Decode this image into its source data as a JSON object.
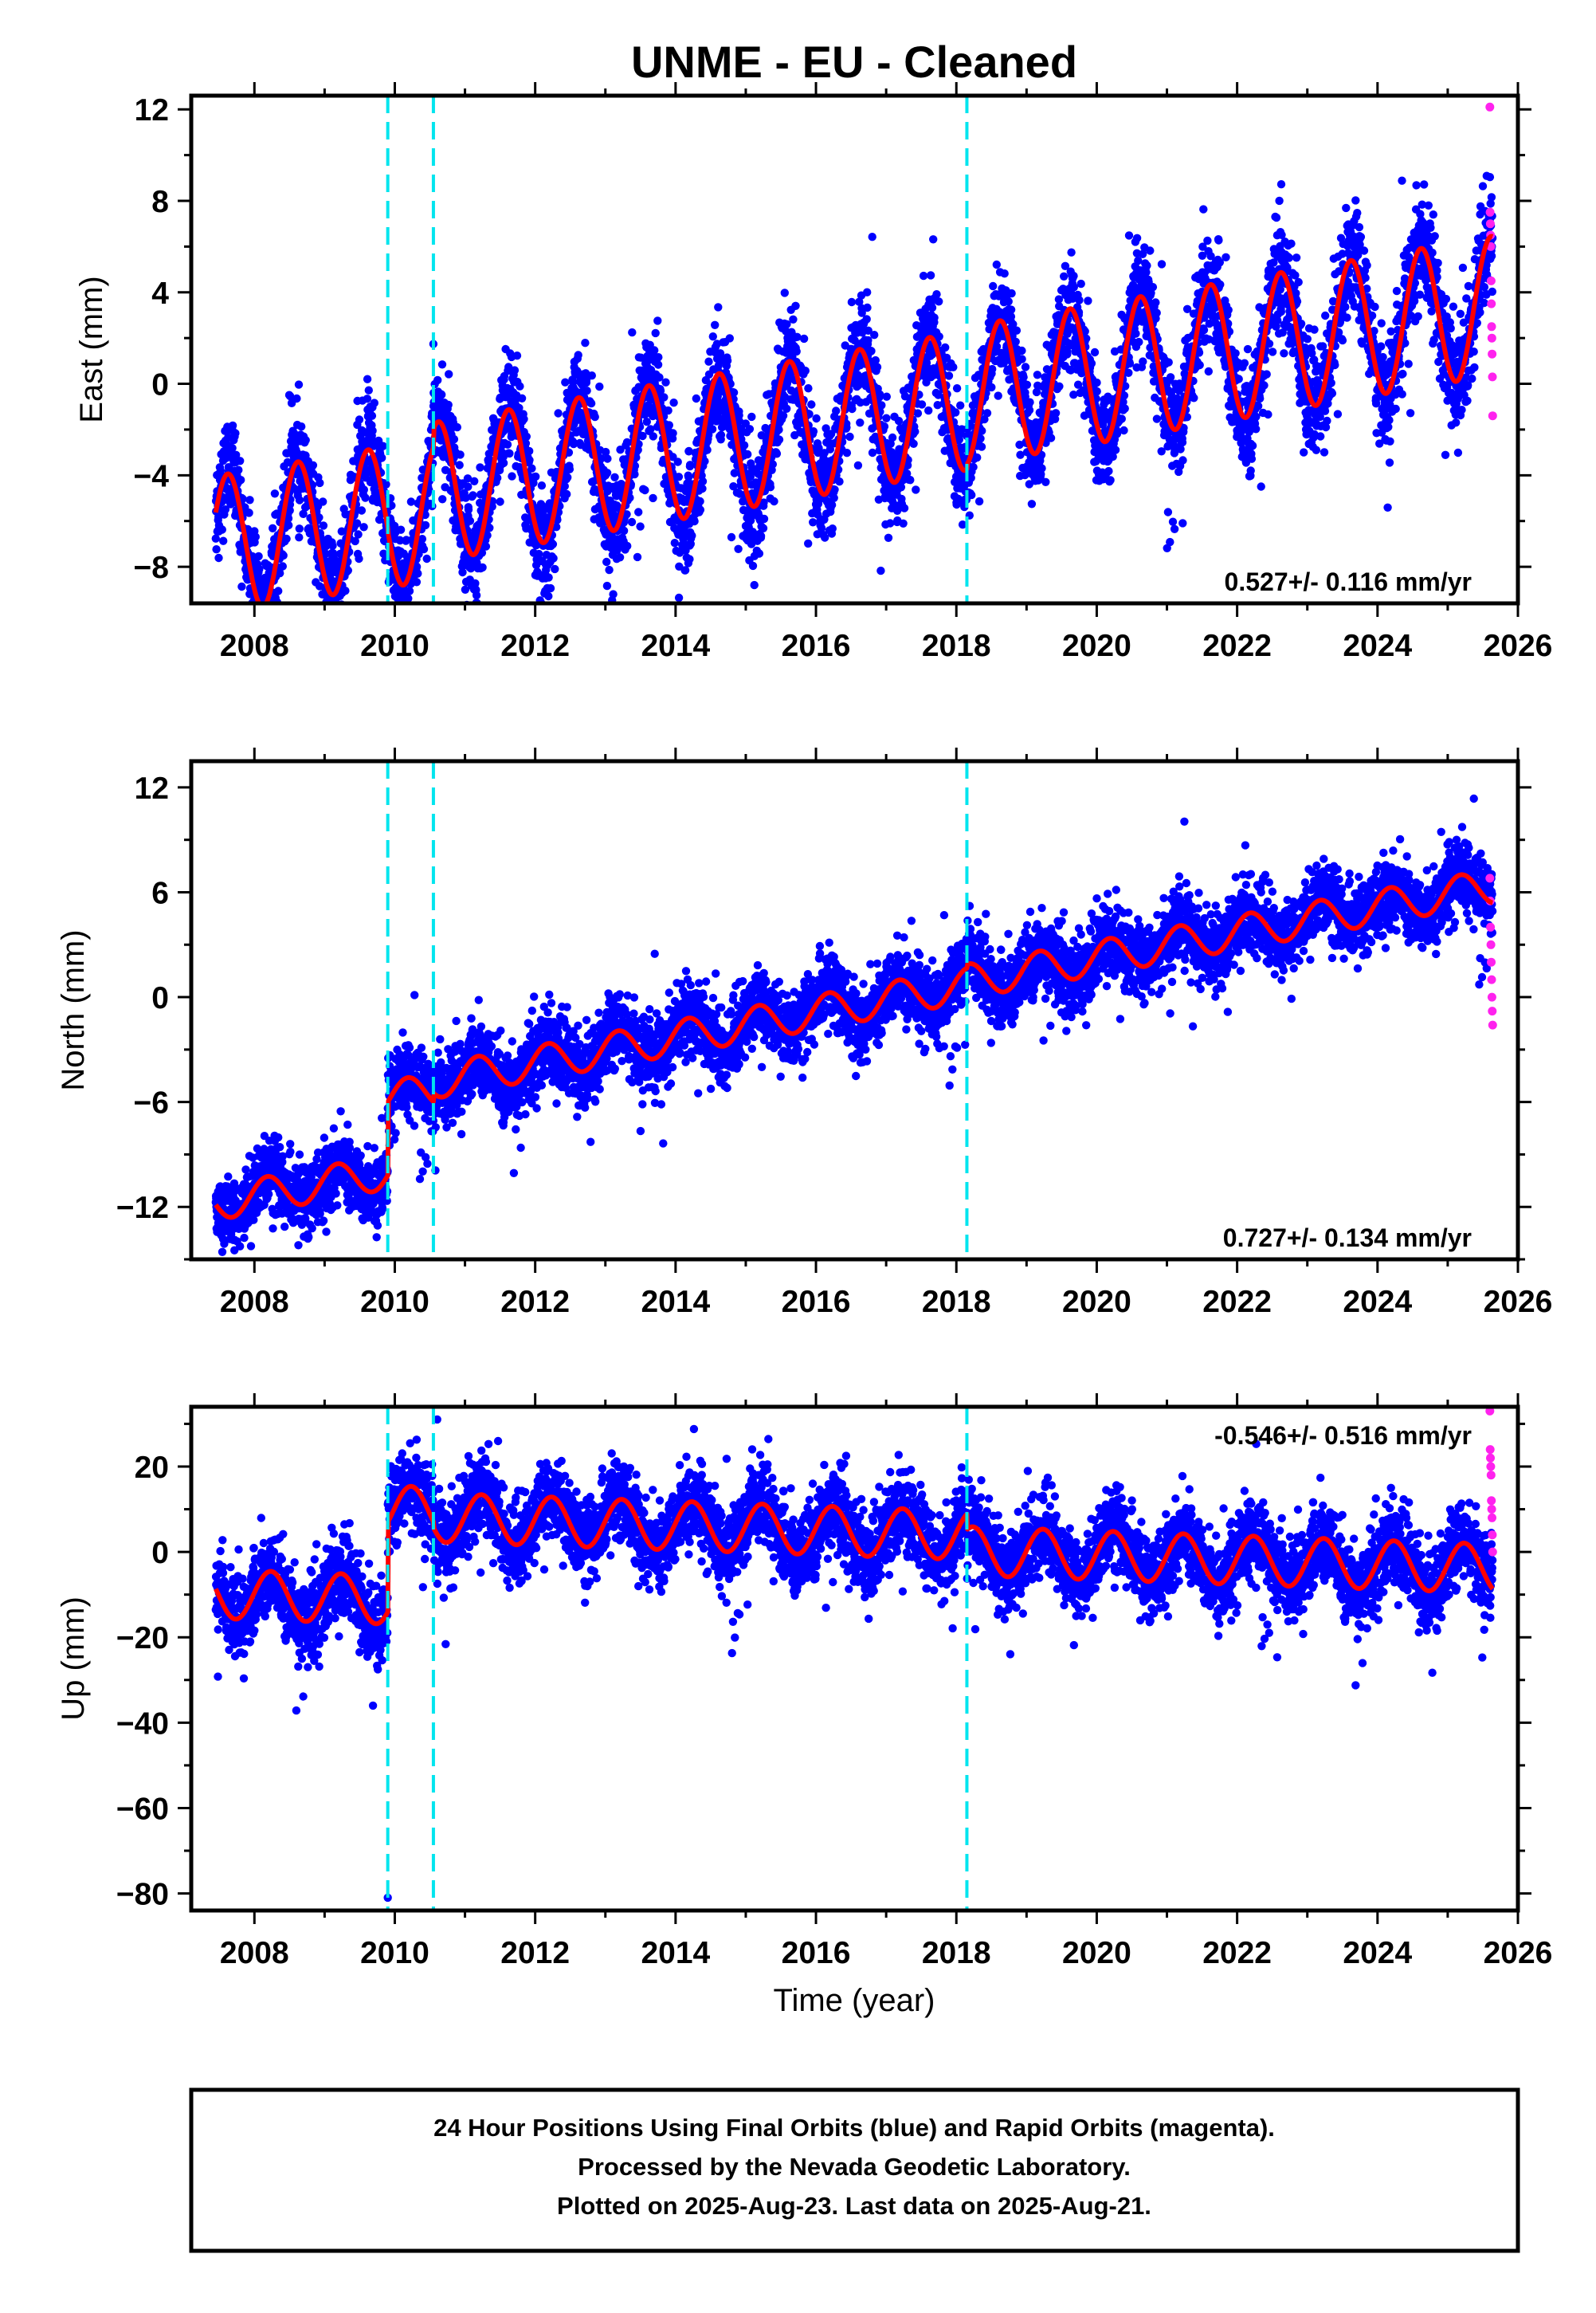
{
  "title": "UNME  - EU - Cleaned",
  "xlabel": "Time (year)",
  "footer": [
    "24 Hour Positions Using Final Orbits (blue) and Rapid Orbits (magenta).",
    "Processed by the Nevada Geodetic Laboratory.",
    "Plotted on 2025-Aug-23. Last data on 2025-Aug-21."
  ],
  "colors": {
    "final_orbits": "#0000ff",
    "rapid_orbits": "#ff22ee",
    "model": "#ff0000",
    "steps": "#00e5ee",
    "frame": "#000000"
  },
  "chart_data": [
    {
      "type": "scatter",
      "ylabel": "East (mm)",
      "rate_label": "0.527+/- 0.116 mm/yr",
      "rate_position": "bottom-right",
      "xlim": [
        2007.1,
        2026
      ],
      "ylim": [
        -9.6,
        12.6
      ],
      "xticks": [
        "2008",
        "2010",
        "2012",
        "2014",
        "2016",
        "2018",
        "2020",
        "2022",
        "2024",
        "2026"
      ],
      "yticks": [
        "12",
        "8",
        "4",
        "0",
        "-4",
        "-8"
      ],
      "steps": [
        2009.9,
        2010.55,
        2018.15
      ],
      "model": {
        "t0": 2007.45,
        "t1": 2025.64,
        "rate": 0.527,
        "ref_year": 2016.5,
        "offset_segments": [
          [
            2007.45,
            2009.9,
            -2.3
          ],
          [
            2009.9,
            2010.55,
            -2.4
          ],
          [
            2010.55,
            2018.15,
            -1.6
          ],
          [
            2018.15,
            2025.64,
            -1.4
          ]
        ],
        "annual_cos": -2.2,
        "annual_sin": -2.1,
        "amp_growth": 0
      },
      "scatter_sigma": 1.1,
      "rapid_orbits": {
        "t0": 2025.6,
        "t1": 2025.64,
        "values": [
          12.1,
          7.5,
          7.0,
          6.5,
          6.0,
          4.5,
          3.5,
          2.5,
          2.0,
          1.3,
          0.3,
          -1.4
        ]
      }
    },
    {
      "type": "scatter",
      "ylabel": "North (mm)",
      "rate_label": "0.727+/- 0.134 mm/yr",
      "rate_position": "bottom-right",
      "xlim": [
        2007.1,
        2026
      ],
      "ylim": [
        -15,
        13.5
      ],
      "xticks": [
        "2008",
        "2010",
        "2012",
        "2014",
        "2016",
        "2018",
        "2020",
        "2022",
        "2024",
        "2026"
      ],
      "yticks": [
        "12",
        "6",
        "0",
        "-6",
        "-12"
      ],
      "steps": [
        2009.9,
        2010.55,
        2018.15
      ],
      "model": {
        "t0": 2007.45,
        "t1": 2025.64,
        "rate": 0.727,
        "ref_year": 2016.5,
        "offset_segments": [
          [
            2007.45,
            2009.9,
            -5.2
          ],
          [
            2009.9,
            2010.55,
            -1.0
          ],
          [
            2010.55,
            2018.15,
            -0.5
          ],
          [
            2018.15,
            2025.64,
            -0.3
          ]
        ],
        "annual_cos": 0.4,
        "annual_sin": 0.9,
        "amp_growth": 0
      },
      "scatter_sigma": 1.0,
      "rapid_orbits": {
        "t0": 2025.6,
        "t1": 2025.64,
        "values": [
          6.8,
          5.5,
          4.0,
          3.0,
          2.0,
          1.0,
          0.0,
          -0.8,
          -1.6
        ]
      }
    },
    {
      "type": "scatter",
      "ylabel": "Up (mm)",
      "rate_label": "-0.546+/- 0.516 mm/yr",
      "rate_position": "top-right",
      "xlim": [
        2007.1,
        2026
      ],
      "ylim": [
        -84,
        34
      ],
      "xticks": [
        "2008",
        "2010",
        "2012",
        "2014",
        "2016",
        "2018",
        "2020",
        "2022",
        "2024",
        "2026"
      ],
      "yticks": [
        "20",
        "0",
        "-20",
        "-40",
        "-60",
        "-80"
      ],
      "steps": [
        2009.9,
        2010.55,
        2018.15
      ],
      "model": {
        "t0": 2007.45,
        "t1": 2025.64,
        "rate": -0.546,
        "ref_year": 2016.5,
        "offset_segments": [
          [
            2007.45,
            2009.9,
            -14.8
          ],
          [
            2009.9,
            2010.55,
            6.2
          ],
          [
            2010.55,
            2018.15,
            4.8
          ],
          [
            2018.15,
            2025.64,
            1.1
          ]
        ],
        "annual_cos": 0.6,
        "annual_sin": 5.7,
        "amp_growth": 0
      },
      "scatter_sigma": 4.5,
      "outliers": [
        [
          2009.9,
          -81
        ]
      ],
      "rapid_orbits": {
        "t0": 2025.6,
        "t1": 2025.64,
        "values": [
          33,
          24,
          22,
          20,
          18,
          12,
          10,
          8,
          4,
          0
        ]
      }
    }
  ]
}
